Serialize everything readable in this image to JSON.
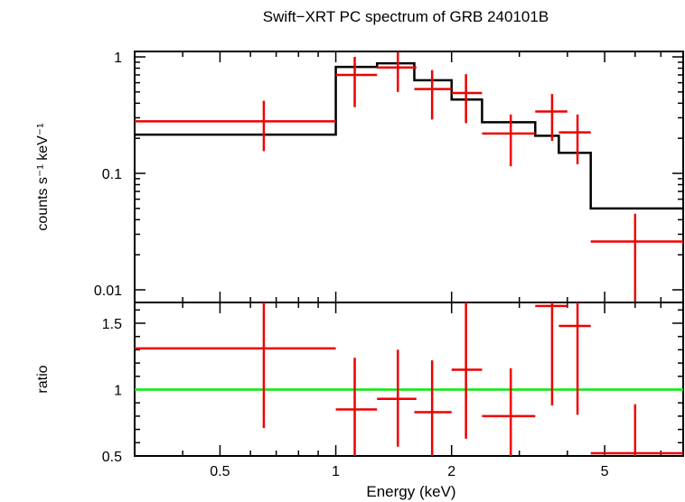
{
  "chart_data": [
    {
      "type": "scatter",
      "title": "Swift−XRT PC spectrum of GRB 240101B",
      "ylabel": "counts s⁻¹ keV⁻¹",
      "yscale": "log",
      "xscale": "log",
      "xlim": [
        0.3,
        8.0
      ],
      "ylim": [
        0.008,
        1.1
      ],
      "y_tick_labels": [
        "1",
        "0.1",
        "0.01"
      ],
      "y_tick_values": [
        1,
        0.1,
        0.01
      ],
      "series": [
        {
          "style": "crosses",
          "color": "#ee0000",
          "points": [
            {
              "x": 0.65,
              "xlo": 0.3,
              "xhi": 1.0,
              "y": 0.28,
              "ylo": 0.155,
              "yhi": 0.42
            },
            {
              "x": 1.12,
              "xlo": 1.0,
              "xhi": 1.28,
              "y": 0.7,
              "ylo": 0.37,
              "yhi": 1.0
            },
            {
              "x": 1.45,
              "xlo": 1.28,
              "xhi": 1.62,
              "y": 0.81,
              "ylo": 0.5,
              "yhi": 1.1
            },
            {
              "x": 1.78,
              "xlo": 1.6,
              "xhi": 2.0,
              "y": 0.53,
              "ylo": 0.29,
              "yhi": 0.77
            },
            {
              "x": 2.18,
              "xlo": 2.0,
              "xhi": 2.4,
              "y": 0.49,
              "ylo": 0.27,
              "yhi": 0.71
            },
            {
              "x": 2.85,
              "xlo": 2.4,
              "xhi": 3.3,
              "y": 0.22,
              "ylo": 0.115,
              "yhi": 0.32
            },
            {
              "x": 3.65,
              "xlo": 3.3,
              "xhi": 4.0,
              "y": 0.34,
              "ylo": 0.19,
              "yhi": 0.48
            },
            {
              "x": 4.25,
              "xlo": 3.8,
              "xhi": 4.6,
              "y": 0.225,
              "ylo": 0.12,
              "yhi": 0.32
            },
            {
              "x": 6.0,
              "xlo": 4.6,
              "xhi": 8.0,
              "y": 0.026,
              "ylo": 0.008,
              "yhi": 0.045
            }
          ]
        },
        {
          "style": "step",
          "color": "#000000",
          "bins": [
            {
              "xlo": 0.3,
              "xhi": 1.0,
              "y": 0.215
            },
            {
              "xlo": 1.0,
              "xhi": 1.28,
              "y": 0.82
            },
            {
              "xlo": 1.28,
              "xhi": 1.6,
              "y": 0.88
            },
            {
              "xlo": 1.6,
              "xhi": 2.0,
              "y": 0.63
            },
            {
              "xlo": 2.0,
              "xhi": 2.4,
              "y": 0.43
            },
            {
              "xlo": 2.4,
              "xhi": 3.3,
              "y": 0.275
            },
            {
              "xlo": 3.3,
              "xhi": 3.8,
              "y": 0.21
            },
            {
              "xlo": 3.8,
              "xhi": 4.6,
              "y": 0.15
            },
            {
              "xlo": 4.6,
              "xhi": 8.0,
              "y": 0.05
            }
          ]
        }
      ]
    },
    {
      "type": "scatter",
      "xlabel": "Energy (keV)",
      "ylabel": "ratio",
      "xscale": "log",
      "xlim": [
        0.3,
        8.0
      ],
      "ylim": [
        0.5,
        1.67
      ],
      "x_tick_labels": [
        "0.5",
        "1",
        "2",
        "5"
      ],
      "x_tick_values": [
        0.5,
        1,
        2,
        5
      ],
      "y_tick_labels": [
        "1.5",
        "1",
        "0.5"
      ],
      "y_tick_values": [
        1.5,
        1,
        0.5
      ],
      "reference_line": {
        "y": 1,
        "color": "#00ee00"
      },
      "series": [
        {
          "style": "crosses",
          "color": "#ee0000",
          "points": [
            {
              "x": 0.65,
              "xlo": 0.3,
              "xhi": 1.0,
              "y": 1.31,
              "ylo": 0.71,
              "yhi": 1.67
            },
            {
              "x": 1.12,
              "xlo": 1.0,
              "xhi": 1.28,
              "y": 0.85,
              "ylo": 0.5,
              "yhi": 1.24
            },
            {
              "x": 1.45,
              "xlo": 1.28,
              "xhi": 1.62,
              "y": 0.93,
              "ylo": 0.57,
              "yhi": 1.3
            },
            {
              "x": 1.78,
              "xlo": 1.6,
              "xhi": 2.0,
              "y": 0.83,
              "ylo": 0.5,
              "yhi": 1.22
            },
            {
              "x": 2.18,
              "xlo": 2.0,
              "xhi": 2.4,
              "y": 1.15,
              "ylo": 0.63,
              "yhi": 1.67
            },
            {
              "x": 2.85,
              "xlo": 2.4,
              "xhi": 3.3,
              "y": 0.8,
              "ylo": 0.5,
              "yhi": 1.16
            },
            {
              "x": 3.65,
              "xlo": 3.3,
              "xhi": 4.0,
              "y": 1.63,
              "ylo": 0.88,
              "yhi": 1.67
            },
            {
              "x": 4.25,
              "xlo": 3.8,
              "xhi": 4.6,
              "y": 1.48,
              "ylo": 0.81,
              "yhi": 1.67
            },
            {
              "x": 6.0,
              "xlo": 4.6,
              "xhi": 8.0,
              "y": 0.52,
              "ylo": 0.5,
              "yhi": 0.89
            }
          ]
        }
      ]
    }
  ]
}
